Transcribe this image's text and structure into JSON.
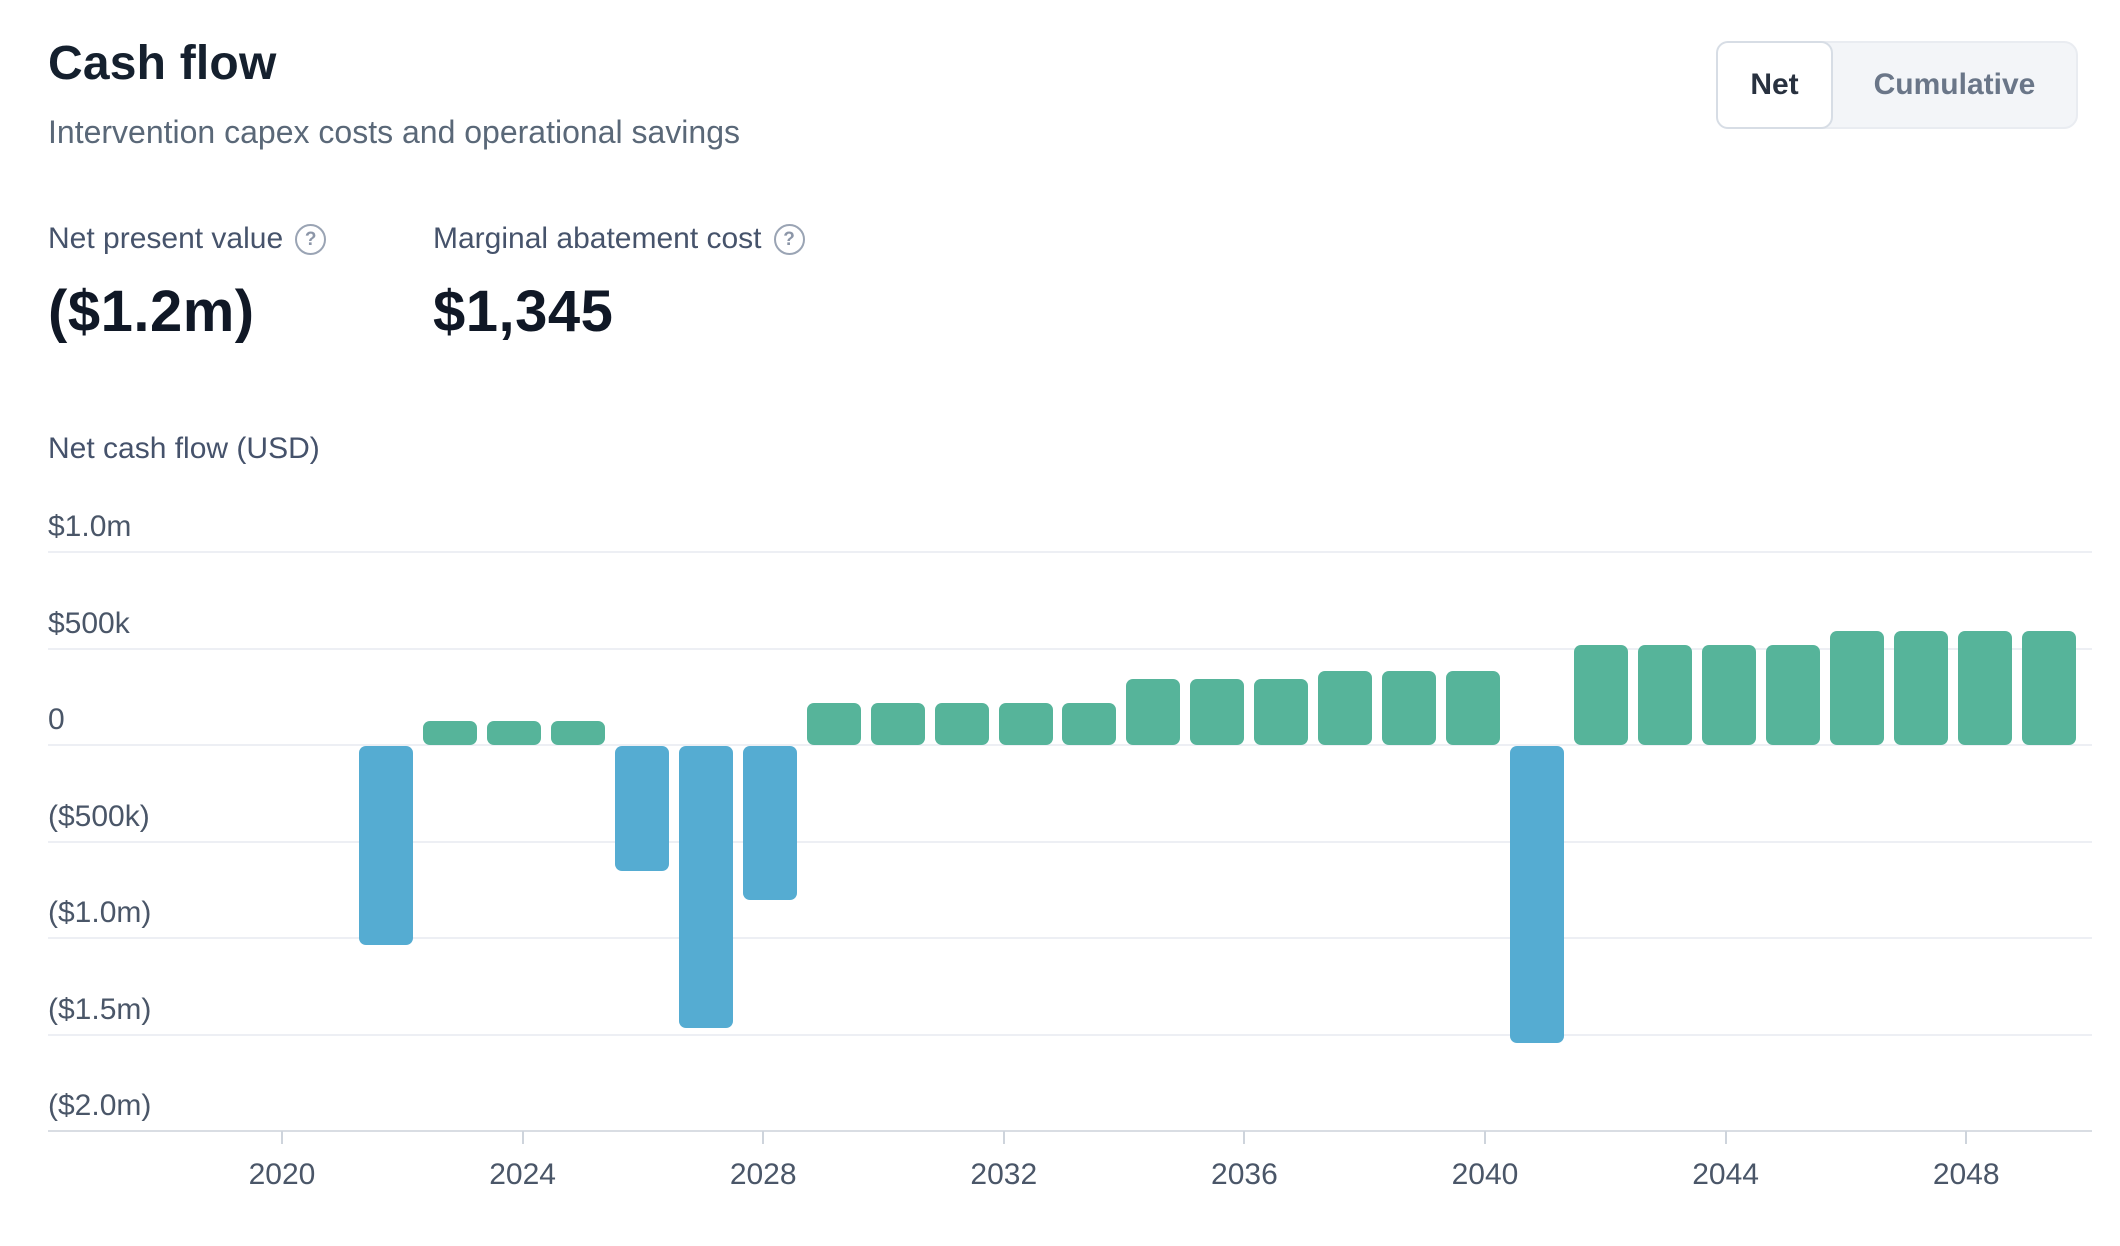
{
  "header": {
    "title": "Cash flow",
    "subtitle": "Intervention capex costs and operational savings"
  },
  "toggle": {
    "options": [
      {
        "label": "Net",
        "active": true
      },
      {
        "label": "Cumulative",
        "active": false
      }
    ]
  },
  "metrics": [
    {
      "label": "Net present value",
      "help_icon": "question-circle",
      "help_glyph": "?",
      "value": "($1.2m)"
    },
    {
      "label": "Marginal abatement cost",
      "help_icon": "question-circle",
      "help_glyph": "?",
      "value": "$1,345"
    }
  ],
  "chart_data": {
    "type": "bar",
    "title": "Net cash flow (USD)",
    "ylabel": "Net cash flow (USD)",
    "xlabel": "",
    "unit": "USD millions",
    "ylim": [
      -2.0,
      1.0
    ],
    "grid": true,
    "legend": "none",
    "colors": {
      "positive": "#56B49A",
      "negative": "#55ACD2"
    },
    "yticks": [
      {
        "label": "$1.0m",
        "value": 1.0
      },
      {
        "label": "$500k",
        "value": 0.5
      },
      {
        "label": "0",
        "value": 0.0
      },
      {
        "label": "($500k)",
        "value": -0.5
      },
      {
        "label": "($1.0m)",
        "value": -1.0
      },
      {
        "label": "($1.5m)",
        "value": -1.5
      },
      {
        "label": "($2.0m)",
        "value": -2.0
      }
    ],
    "xticks": [
      2020,
      2024,
      2028,
      2032,
      2036,
      2040,
      2044,
      2048
    ],
    "bars": [
      {
        "year": 2023,
        "value": -1.03
      },
      {
        "year": 2024,
        "value": 0.125
      },
      {
        "year": 2025,
        "value": 0.125
      },
      {
        "year": 2026,
        "value": 0.125
      },
      {
        "year": 2027,
        "value": -0.65
      },
      {
        "year": 2028,
        "value": -1.46
      },
      {
        "year": 2029,
        "value": -0.8
      },
      {
        "year": 2030,
        "value": 0.22
      },
      {
        "year": 2031,
        "value": 0.22
      },
      {
        "year": 2032,
        "value": 0.22
      },
      {
        "year": 2033,
        "value": 0.22
      },
      {
        "year": 2034,
        "value": 0.22
      },
      {
        "year": 2035,
        "value": 0.34
      },
      {
        "year": 2036,
        "value": 0.34
      },
      {
        "year": 2037,
        "value": 0.34
      },
      {
        "year": 2038,
        "value": 0.385
      },
      {
        "year": 2039,
        "value": 0.385
      },
      {
        "year": 2040,
        "value": 0.385
      },
      {
        "year": 2041,
        "value": -1.54
      },
      {
        "year": 2042,
        "value": 0.52
      },
      {
        "year": 2043,
        "value": 0.52
      },
      {
        "year": 2044,
        "value": 0.52
      },
      {
        "year": 2045,
        "value": 0.52
      },
      {
        "year": 2046,
        "value": 0.59
      },
      {
        "year": 2047,
        "value": 0.59
      },
      {
        "year": 2048,
        "value": 0.59
      },
      {
        "year": 2049,
        "value": 0.59
      }
    ]
  }
}
